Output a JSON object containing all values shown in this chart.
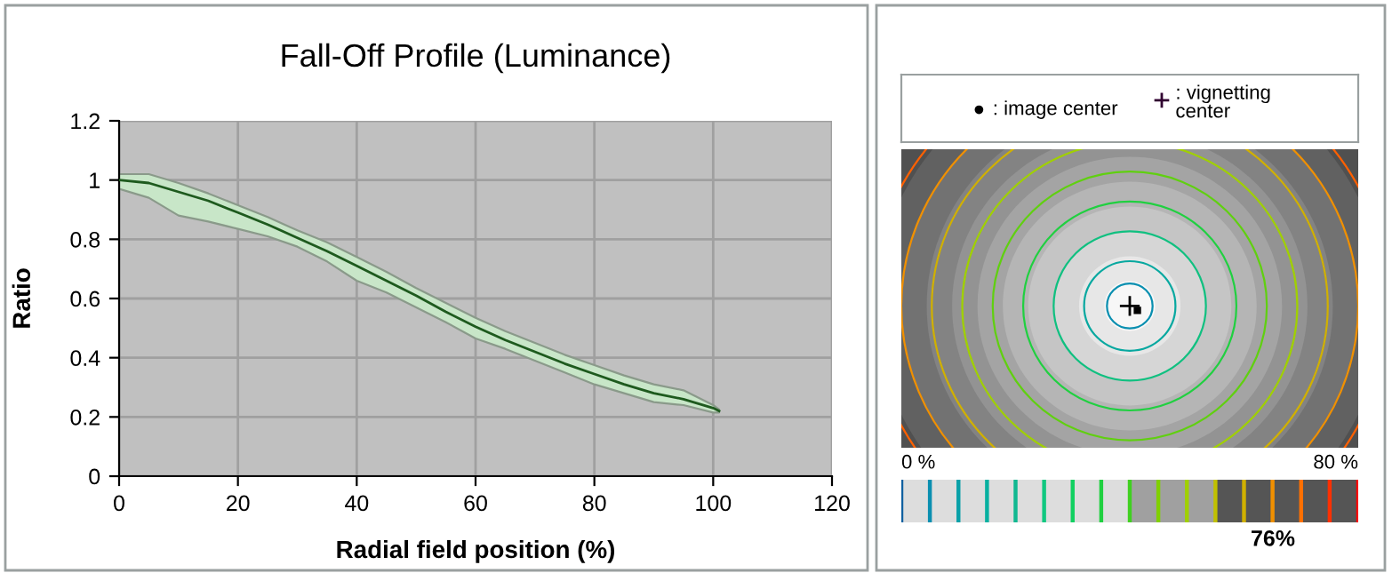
{
  "chart_data": [
    {
      "type": "line",
      "title": "Fall-Off Profile (Luminance)",
      "xlabel": "Radial field position (%)",
      "ylabel": "Ratio",
      "x": [
        0,
        5,
        10,
        15,
        20,
        25,
        30,
        35,
        40,
        45,
        50,
        55,
        60,
        65,
        70,
        75,
        80,
        85,
        90,
        95,
        100,
        101
      ],
      "series": [
        {
          "color": "#1e5a1e",
          "values": [
            1.0,
            0.99,
            0.96,
            0.93,
            0.89,
            0.85,
            0.805,
            0.76,
            0.71,
            0.66,
            0.61,
            0.555,
            0.505,
            0.46,
            0.42,
            0.38,
            0.345,
            0.31,
            0.28,
            0.26,
            0.23,
            0.22
          ],
          "upper": [
            1.02,
            1.02,
            0.99,
            0.955,
            0.915,
            0.875,
            0.83,
            0.79,
            0.74,
            0.69,
            0.635,
            0.585,
            0.535,
            0.49,
            0.45,
            0.41,
            0.375,
            0.34,
            0.31,
            0.29,
            0.24,
            0.225
          ],
          "lower": [
            0.97,
            0.94,
            0.88,
            0.86,
            0.835,
            0.81,
            0.775,
            0.725,
            0.66,
            0.62,
            0.57,
            0.52,
            0.465,
            0.43,
            0.39,
            0.35,
            0.31,
            0.28,
            0.25,
            0.24,
            0.215,
            0.215
          ]
        }
      ],
      "xlim": [
        0,
        120
      ],
      "xticks": [
        0,
        20,
        40,
        60,
        80,
        100,
        120
      ],
      "ylim": [
        0,
        1.2
      ],
      "yticks": [
        0,
        0.2,
        0.4,
        0.6,
        0.8,
        1,
        1.2
      ],
      "grid": true
    },
    {
      "type": "other",
      "annotations": [
        ": image center",
        ": vignetting\ncenter",
        "0 %",
        "80 %",
        "76%"
      ]
    }
  ]
}
